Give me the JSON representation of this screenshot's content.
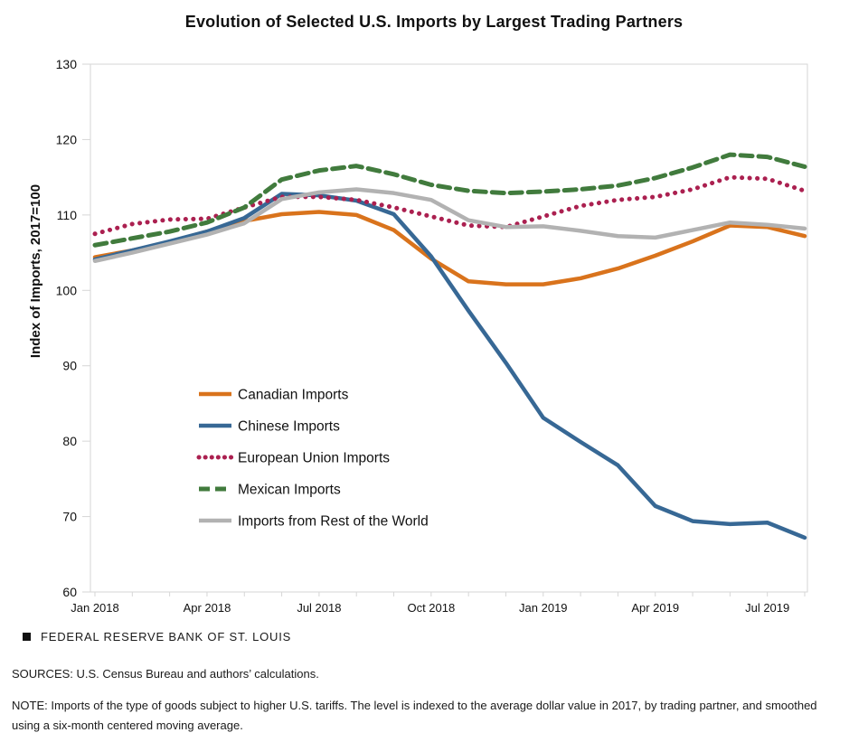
{
  "title": "Evolution of Selected U.S. Imports by Largest Trading Partners",
  "chart_data": {
    "type": "line",
    "x": [
      "Jan 2018",
      "Feb 2018",
      "Mar 2018",
      "Apr 2018",
      "May 2018",
      "Jun 2018",
      "Jul 2018",
      "Aug 2018",
      "Sep 2018",
      "Oct 2018",
      "Nov 2018",
      "Dec 2018",
      "Jan 2019",
      "Feb 2019",
      "Mar 2019",
      "Apr 2019",
      "May 2019",
      "Jun 2019",
      "Jul 2019",
      "Aug 2019"
    ],
    "x_tick_labels": [
      "Jan 2018",
      "Apr 2018",
      "Jul 2018",
      "Oct 2018",
      "Jan 2019",
      "Apr 2019",
      "Jul 2019"
    ],
    "ylabel": "Index of Imports, 2017=100",
    "ylim": [
      60,
      130
    ],
    "yticks": [
      60,
      70,
      80,
      90,
      100,
      110,
      120,
      130
    ],
    "grid": false,
    "legend_position": "inside-center-left",
    "series": [
      {
        "name": "Canadian Imports",
        "color": "#D9731C",
        "style": "solid",
        "values": [
          104.4,
          105.3,
          106.4,
          107.8,
          109.2,
          110.1,
          110.4,
          110.0,
          108.0,
          104.2,
          101.2,
          100.8,
          100.8,
          101.6,
          102.9,
          104.6,
          106.5,
          108.6,
          108.4,
          107.2
        ]
      },
      {
        "name": "Chinese Imports",
        "color": "#376895",
        "style": "solid",
        "values": [
          104.1,
          105.3,
          106.5,
          107.8,
          109.6,
          112.8,
          112.6,
          111.9,
          110.1,
          104.5,
          97.3,
          90.4,
          83.1,
          79.9,
          76.8,
          71.4,
          69.4,
          69.0,
          69.2,
          67.2
        ]
      },
      {
        "name": "European Union Imports",
        "color": "#AB2050",
        "style": "dotted",
        "values": [
          107.5,
          108.8,
          109.4,
          109.5,
          111.0,
          112.4,
          112.4,
          112.0,
          111.0,
          109.8,
          108.6,
          108.4,
          109.8,
          111.2,
          112.0,
          112.4,
          113.4,
          115.0,
          114.8,
          113.2
        ]
      },
      {
        "name": "Mexican Imports",
        "color": "#417B3D",
        "style": "dashed",
        "values": [
          106.0,
          106.9,
          107.8,
          109.0,
          111.0,
          114.7,
          115.9,
          116.5,
          115.4,
          114.0,
          113.2,
          112.9,
          113.1,
          113.4,
          113.9,
          114.9,
          116.3,
          118.0,
          117.7,
          116.4
        ]
      },
      {
        "name": "Imports from Rest of the World",
        "color": "#B2B2B2",
        "style": "solid",
        "values": [
          103.9,
          105.0,
          106.2,
          107.4,
          108.9,
          112.1,
          113.0,
          113.4,
          112.9,
          112.0,
          109.3,
          108.4,
          108.5,
          107.9,
          107.2,
          107.0,
          108.0,
          109.0,
          108.7,
          108.2
        ]
      }
    ],
    "axis_color": "#D6D6D6"
  },
  "footer": {
    "branding": "FEDERAL RESERVE BANK OF ST. LOUIS",
    "sources": "SOURCES: U.S. Census Bureau and authors’ calculations.",
    "note": "NOTE: Imports of the type of goods subject to higher U.S. tariffs. The level is indexed to the average dollar value in 2017, by trading partner, and smoothed using a six-month centered moving average."
  }
}
